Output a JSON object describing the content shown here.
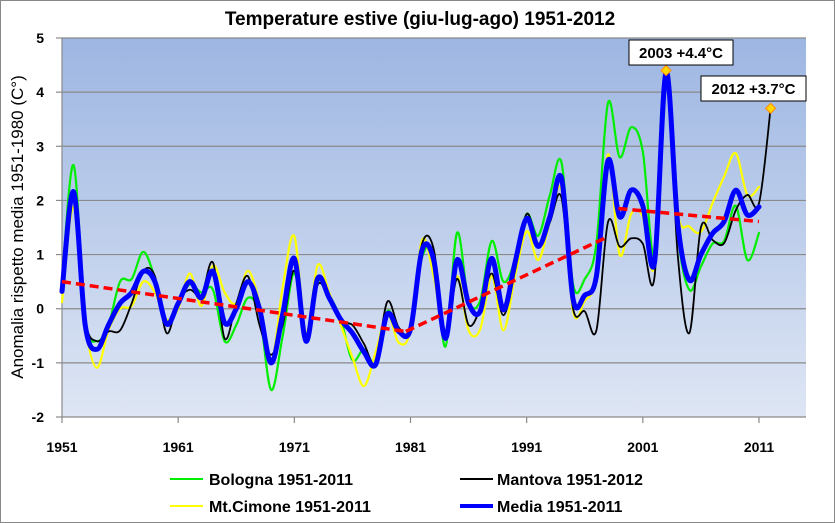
{
  "chart_data": {
    "type": "line",
    "title": "Temperature estive (giu-lug-ago)  1951-2012",
    "xlabel": "",
    "ylabel": "Anomalia  rispetto  media  1951-1980  (C°)",
    "xlim": [
      1951,
      2015
    ],
    "ylim": [
      -2,
      5
    ],
    "grid": true,
    "x_ticks": [
      1951,
      1961,
      1971,
      1981,
      1991,
      2001,
      2011
    ],
    "x_tick_labels": [
      "1951",
      "1961",
      "1971",
      "1981",
      "1991",
      "2001",
      "2011"
    ],
    "y_ticks": [
      -2,
      -1,
      0,
      1,
      2,
      3,
      4,
      5
    ],
    "y_tick_labels": [
      "-2",
      "-1",
      "0",
      "1",
      "2",
      "3",
      "4",
      "5"
    ],
    "legend_position": "bottom",
    "series": [
      {
        "name": "Bologna 1951-2011",
        "color": "#00ee00",
        "x_start": 1951,
        "values": [
          0.5,
          2.65,
          -0.2,
          -0.6,
          -0.3,
          0.5,
          0.55,
          1.05,
          0.55,
          -0.3,
          0.1,
          0.45,
          0.3,
          0.35,
          -0.6,
          -0.3,
          0.2,
          -0.1,
          -1.5,
          -0.5,
          0.65,
          -0.55,
          0.45,
          0.25,
          -0.2,
          -0.95,
          -0.75,
          -1.0,
          -0.05,
          -0.4,
          -0.35,
          0.95,
          1.0,
          -0.7,
          1.4,
          0.15,
          0.15,
          1.25,
          0.5,
          0.9,
          1.75,
          1.35,
          2.1,
          2.7,
          0.45,
          0.55,
          1.2,
          3.8,
          2.8,
          3.35,
          2.9,
          1.0,
          4.4,
          1.4,
          0.35,
          0.78,
          1.2,
          1.25,
          1.9,
          0.9,
          1.4
        ]
      },
      {
        "name": "Mantova 1951-2012",
        "color": "#000000",
        "x_start": 1951,
        "values": [
          0.5,
          2.0,
          -0.2,
          -0.6,
          -0.42,
          -0.4,
          0.1,
          0.7,
          0.6,
          -0.45,
          0.15,
          0.35,
          0.25,
          0.85,
          -0.55,
          0.1,
          0.6,
          -0.3,
          -0.85,
          -0.3,
          0.7,
          -0.6,
          0.44,
          0.2,
          -0.23,
          -0.3,
          -0.65,
          -1.0,
          0.13,
          -0.35,
          -0.35,
          1.2,
          1.1,
          -0.5,
          0.55,
          -0.3,
          0.0,
          0.65,
          -0.12,
          0.7,
          1.75,
          1.2,
          1.6,
          2.05,
          0.0,
          -0.05,
          -0.4,
          1.6,
          1.15,
          1.3,
          1.2,
          0.58,
          4.4,
          1.0,
          -0.45,
          1.5,
          1.27,
          1.21,
          1.82,
          2.1,
          1.95,
          3.7
        ]
      },
      {
        "name": "Mt.Cimone 1951-2011",
        "color": "#ffff00",
        "x_start": 1951,
        "values": [
          0.12,
          1.88,
          -0.3,
          -1.09,
          -0.4,
          0.0,
          0.05,
          0.5,
          0.3,
          -0.2,
          0.0,
          0.65,
          0.05,
          0.8,
          0.3,
          0.1,
          0.7,
          0.1,
          -1.0,
          0.4,
          1.34,
          -0.45,
          0.8,
          0.3,
          -0.3,
          -0.9,
          -1.43,
          -0.8,
          -0.1,
          -0.63,
          -0.4,
          1.27,
          0.6,
          -0.5,
          0.6,
          -0.4,
          -0.38,
          0.6,
          -0.4,
          0.6,
          1.43,
          0.9,
          1.6,
          2.2,
          -0.05,
          0.15,
          0.6,
          2.85,
          1.0,
          1.75,
          1.7,
          0.8,
          4.4,
          1.79,
          1.52,
          1.42,
          1.95,
          2.44,
          2.87,
          2.1,
          2.25
        ]
      },
      {
        "name": "Media 1951-2011",
        "color": "#0000ff",
        "x_start": 1951,
        "values": [
          0.32,
          2.16,
          -0.3,
          -0.75,
          -0.3,
          0.1,
          0.3,
          0.69,
          0.5,
          -0.28,
          0.1,
          0.5,
          0.2,
          0.69,
          -0.26,
          0.0,
          0.5,
          0.0,
          -1.0,
          -0.1,
          0.93,
          -0.6,
          0.56,
          0.2,
          -0.2,
          -0.45,
          -0.8,
          -1.03,
          -0.1,
          -0.42,
          -0.38,
          1.09,
          0.9,
          -0.55,
          0.9,
          0.1,
          -0.05,
          0.93,
          -0.02,
          0.85,
          1.67,
          1.15,
          1.7,
          2.41,
          0.17,
          0.25,
          0.6,
          2.74,
          1.7,
          2.19,
          1.9,
          0.85,
          4.37,
          1.58,
          0.53,
          1.0,
          1.39,
          1.61,
          2.19,
          1.73,
          1.88
        ]
      }
    ],
    "trend_lines": [
      {
        "name": "trend-1951-1980",
        "color": "#ff0000",
        "points": [
          [
            1951,
            0.5
          ],
          [
            1980.6,
            -0.42
          ]
        ]
      },
      {
        "name": "trend-1980-1998",
        "color": "#ff0000",
        "points": [
          [
            1980.6,
            -0.42
          ],
          [
            1998,
            1.33
          ]
        ]
      },
      {
        "name": "trend-1999-2011",
        "color": "#ff0000",
        "points": [
          [
            1998.9,
            1.85
          ],
          [
            2011,
            1.61
          ]
        ]
      }
    ],
    "annotations": [
      {
        "text": "2003  +4.4°C",
        "x": 2003,
        "y": 4.4
      },
      {
        "text": "2012  +3.7°C",
        "x": 2012,
        "y": 3.7
      }
    ]
  }
}
